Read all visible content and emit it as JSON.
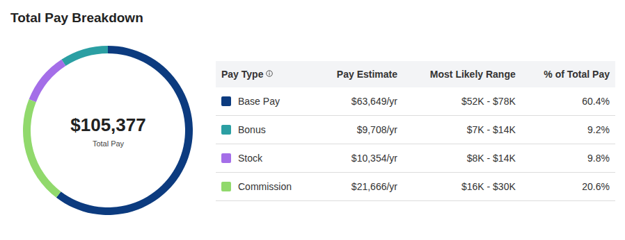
{
  "chart_data": {
    "type": "pie",
    "title": "Total Pay Breakdown",
    "center_text": "$105,377",
    "center_subtext": "Total Pay",
    "categories": [
      "Base Pay",
      "Bonus",
      "Stock",
      "Commission"
    ],
    "values": [
      60.4,
      9.2,
      9.8,
      20.6
    ],
    "colors": [
      "#0c3b7f",
      "#2b9fa3",
      "#a46ee8",
      "#91d96c"
    ],
    "table": {
      "columns": [
        "Pay Type",
        "Pay Estimate",
        "Most Likely Range",
        "% of Total Pay"
      ],
      "rows": [
        [
          "Base Pay",
          "$63,649/yr",
          "$52K - $78K",
          "60.4%"
        ],
        [
          "Bonus",
          "$9,708/yr",
          "$7K - $14K",
          "9.2%"
        ],
        [
          "Stock",
          "$10,354/yr",
          "$8K - $14K",
          "9.8%"
        ],
        [
          "Commission",
          "$21,666/yr",
          "$16K - $30K",
          "20.6%"
        ]
      ]
    }
  }
}
